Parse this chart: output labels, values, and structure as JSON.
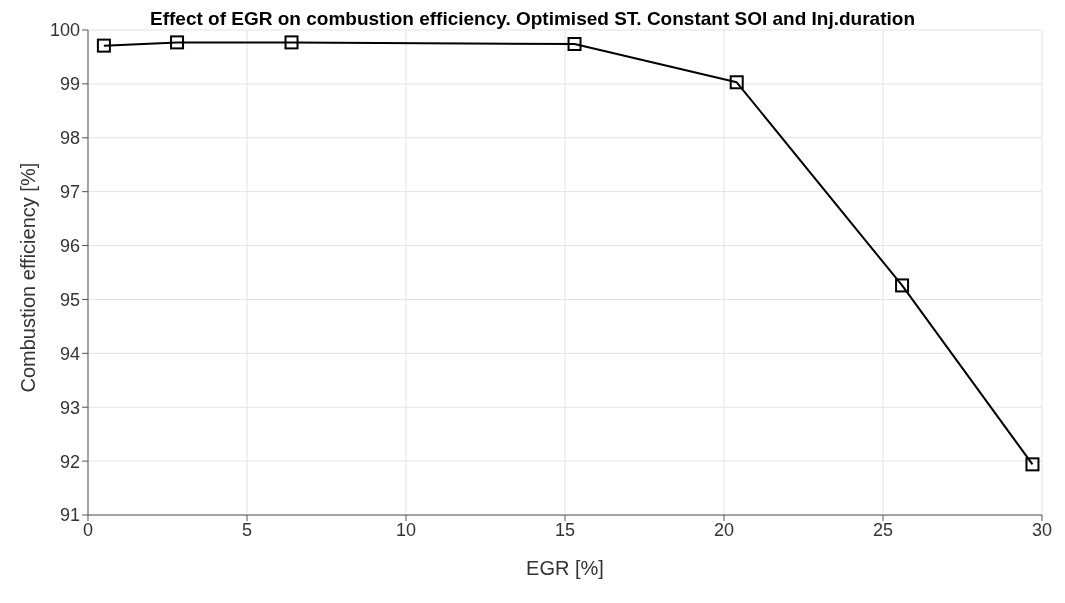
{
  "chart_data": {
    "type": "line",
    "title": "Effect of EGR on combustion efficiency. Optimised ST. Constant SOI and Inj.duration",
    "xlabel": "EGR [%]",
    "ylabel": "Combustion efficiency [%]",
    "x": [
      0.5,
      2.8,
      6.4,
      15.3,
      20.4,
      25.6,
      29.7
    ],
    "series": [
      {
        "color": "#000000",
        "values": [
          99.71,
          99.77,
          99.77,
          99.74,
          99.03,
          95.26,
          91.94
        ]
      }
    ],
    "xlim": [
      0,
      30
    ],
    "xticks": [
      0,
      5,
      10,
      15,
      20,
      25,
      30
    ],
    "ylim": [
      91,
      100
    ],
    "yticks": [
      91,
      92,
      93,
      94,
      95,
      96,
      97,
      98,
      99,
      100
    ],
    "grid": true,
    "marker": "square",
    "line_style": "solid"
  }
}
